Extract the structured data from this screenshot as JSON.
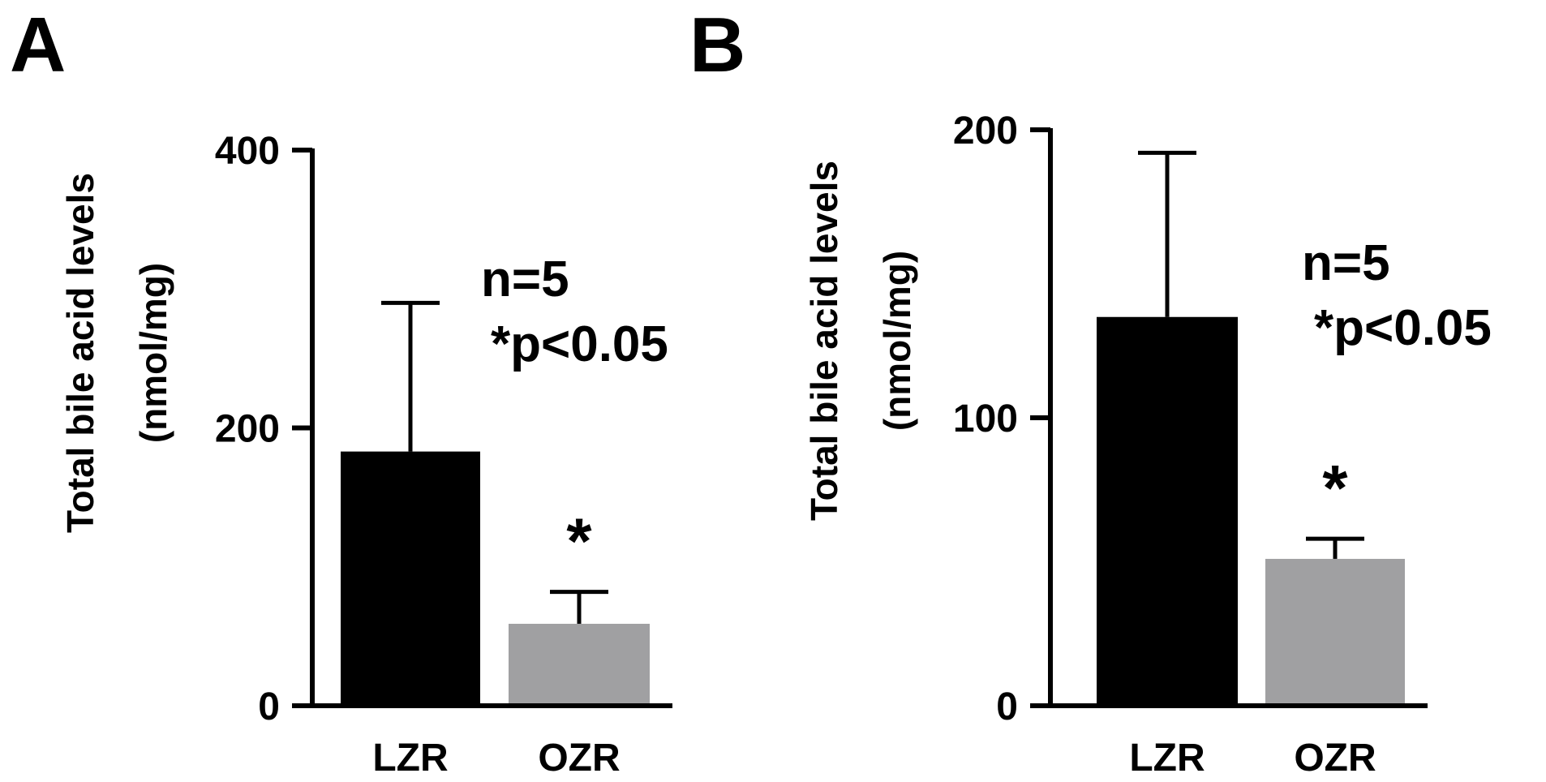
{
  "chart_data": [
    {
      "type": "bar",
      "panel": "A",
      "categories": [
        "LZR",
        "OZR"
      ],
      "values": [
        183,
        59
      ],
      "error_upper": [
        290,
        82
      ],
      "colors": [
        "#000000",
        "#a0a0a2"
      ],
      "ylabel_line1": "Total bile acid levels",
      "ylabel_line2": "(nmol/mg)",
      "ylim": [
        0,
        400
      ],
      "yticks": [
        0,
        200,
        400
      ],
      "ytick_labels": [
        "0",
        "200",
        "400"
      ],
      "annotation_n": "n=5",
      "annotation_p": "*p<0.05",
      "significance": [
        "",
        "*"
      ]
    },
    {
      "type": "bar",
      "panel": "B",
      "categories": [
        "LZR",
        "OZR"
      ],
      "values": [
        135,
        51
      ],
      "error_upper": [
        192,
        58
      ],
      "colors": [
        "#000000",
        "#a0a0a2"
      ],
      "ylabel_line1": "Total bile acid levels",
      "ylabel_line2": "(nmol/mg)",
      "ylim": [
        0,
        200
      ],
      "yticks": [
        0,
        100,
        200
      ],
      "ytick_labels": [
        "0",
        "100",
        "200"
      ],
      "annotation_n": "n=5",
      "annotation_p": "*p<0.05",
      "significance": [
        "",
        "*"
      ]
    }
  ]
}
